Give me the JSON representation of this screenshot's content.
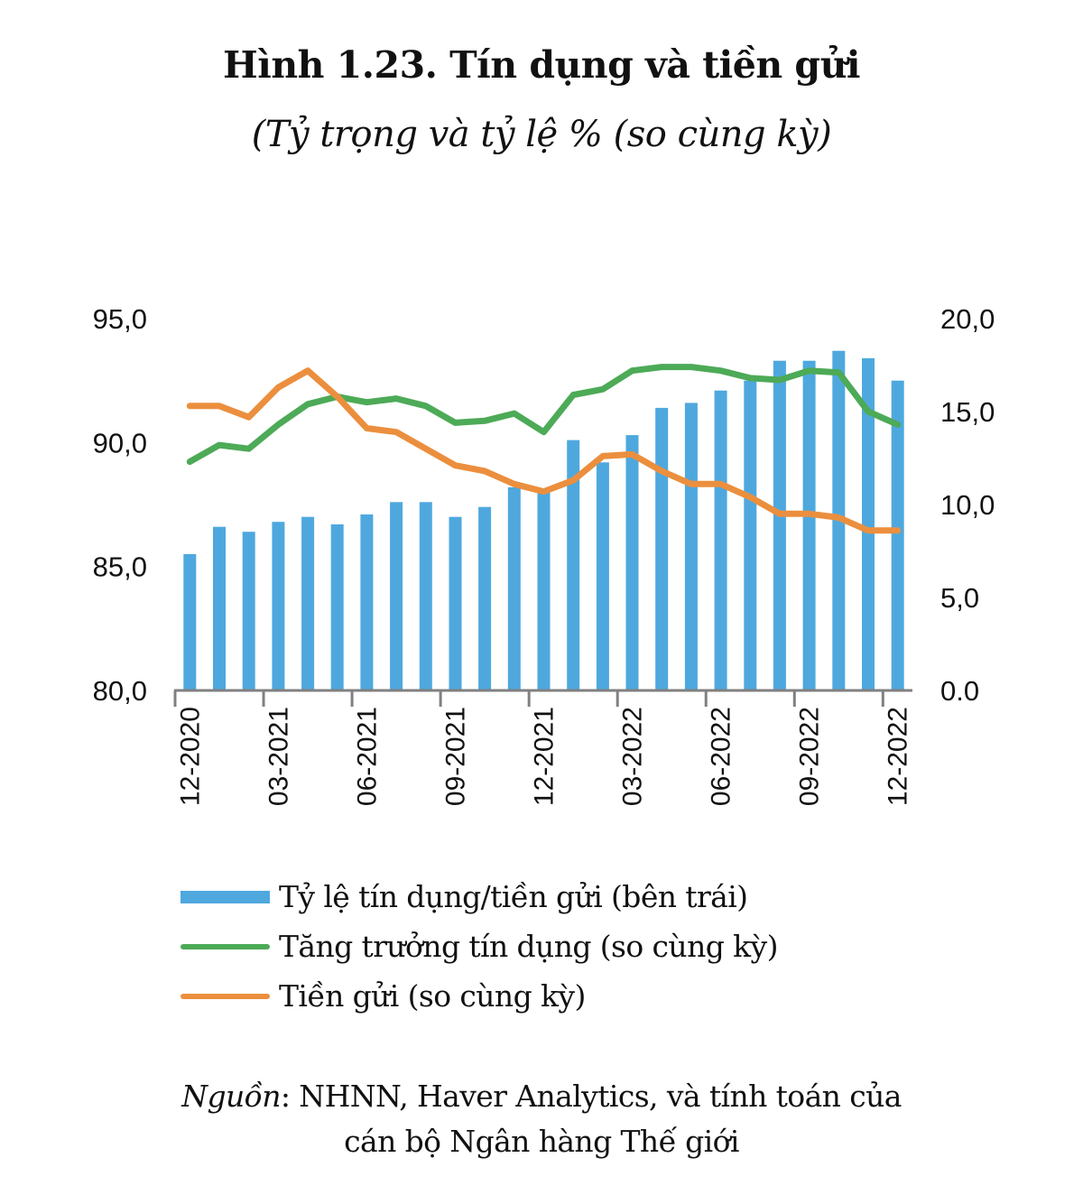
{
  "title": "Hình 1.23. Tín dụng và tiền gửi",
  "subtitle": "(Tỷ trọng và tỷ lệ % (so cùng kỳ)",
  "colors": {
    "ratio_bar": "#4EA8DE",
    "credit_growth_line": "#4DAA57",
    "deposit_line": "#EB8F3E",
    "axis": "#808080"
  },
  "legend": [
    {
      "label": "Tỷ lệ tín dụng/tiền gửi (bên trái)",
      "kind": "bar"
    },
    {
      "label": "Tăng trưởng tín dụng (so cùng kỳ)",
      "kind": "line"
    },
    {
      "label": "Tiền gửi (so cùng kỳ)",
      "kind": "line"
    }
  ],
  "source": {
    "prefix": "Nguồn",
    "line1_rest": ": NHNN, Haver Analytics, và tính toán của",
    "line2": "cán bộ Ngân hàng Thế giới"
  },
  "chart_data": {
    "type": "bar+line",
    "title": "Hình 1.23. Tín dụng và tiền gửi",
    "subtitle": "(Tỷ trọng và tỷ lệ % (so cùng kỳ)",
    "x": [
      "12-2020",
      "01-2021",
      "02-2021",
      "03-2021",
      "04-2021",
      "05-2021",
      "06-2021",
      "07-2021",
      "08-2021",
      "09-2021",
      "10-2021",
      "11-2021",
      "12-2021",
      "01-2022",
      "02-2022",
      "03-2022",
      "04-2022",
      "05-2022",
      "06-2022",
      "07-2022",
      "08-2022",
      "09-2022",
      "10-2022",
      "11-2022",
      "12-2022"
    ],
    "x_tick_labels": [
      "12-2020",
      "03-2021",
      "06-2021",
      "09-2021",
      "12-2021",
      "03-2022",
      "06-2022",
      "09-2022",
      "12-2022"
    ],
    "y_left": {
      "ylim": [
        80,
        95
      ],
      "ticks": [
        "80,0",
        "85,0",
        "90,0",
        "95,0"
      ],
      "tick_values": [
        80,
        85,
        90,
        95
      ]
    },
    "y_right": {
      "ylim": [
        0,
        20
      ],
      "ticks": [
        "0.0",
        "5,0",
        "10,0",
        "15,0",
        "20,0"
      ],
      "tick_values": [
        0,
        5,
        10,
        15,
        20
      ]
    },
    "grid": false,
    "legend_position": "bottom",
    "series": [
      {
        "name": "Tỷ lệ tín dụng/tiền gửi (bên trái)",
        "type": "bar",
        "axis": "left",
        "values": [
          85.5,
          86.6,
          86.4,
          86.8,
          87.0,
          86.7,
          87.1,
          87.6,
          87.6,
          87.0,
          87.4,
          88.2,
          88.0,
          90.1,
          89.2,
          90.3,
          91.4,
          91.6,
          92.1,
          92.5,
          93.3,
          93.3,
          93.7,
          93.4,
          92.5
        ]
      },
      {
        "name": "Tăng trưởng tín dụng (so cùng kỳ)",
        "type": "line",
        "axis": "right",
        "values": [
          12.3,
          13.2,
          13.0,
          14.3,
          15.4,
          15.8,
          15.5,
          15.7,
          15.3,
          14.4,
          14.5,
          14.9,
          13.9,
          15.9,
          16.2,
          17.2,
          17.4,
          17.4,
          17.2,
          16.8,
          16.7,
          17.2,
          17.1,
          15.0,
          14.3
        ]
      },
      {
        "name": "Tiền gửi (so cùng kỳ)",
        "type": "line",
        "axis": "right",
        "values": [
          15.3,
          15.3,
          14.7,
          16.3,
          17.2,
          15.8,
          14.1,
          13.9,
          13.0,
          12.1,
          11.8,
          11.1,
          10.7,
          11.3,
          12.6,
          12.7,
          11.8,
          11.1,
          11.1,
          10.4,
          9.5,
          9.5,
          9.3,
          8.6,
          8.6
        ]
      }
    ]
  }
}
